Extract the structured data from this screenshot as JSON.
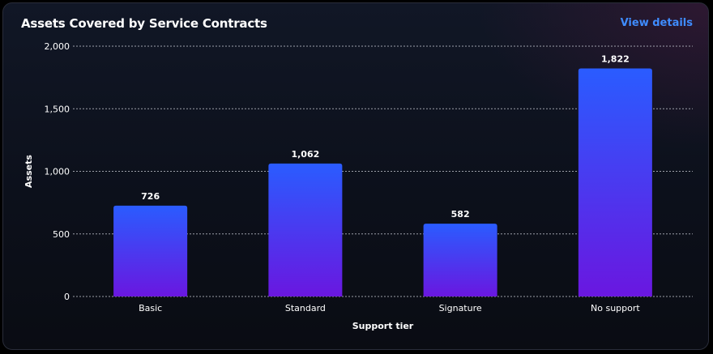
{
  "card": {
    "title": "Assets Covered by Service Contracts",
    "link_label": "View details"
  },
  "colors": {
    "background": "#0c101b",
    "accent_link": "#3f8cff",
    "bar_top": "#2a5cff",
    "bar_bottom": "#6a17e0",
    "grid": "#bfc3cc"
  },
  "chart_data": {
    "type": "bar",
    "categories": [
      "Basic",
      "Standard",
      "Signature",
      "No support"
    ],
    "values": [
      726,
      1062,
      582,
      1822
    ],
    "value_labels": [
      "726",
      "1,062",
      "582",
      "1,822"
    ],
    "xlabel": "Support tier",
    "ylabel": "Assets",
    "ylim": [
      0,
      2000
    ],
    "yticks": [
      0,
      500,
      1000,
      1500,
      2000
    ],
    "ytick_labels": [
      "0",
      "500",
      "1,000",
      "1,500",
      "2,000"
    ],
    "grid": true,
    "legend": false
  }
}
